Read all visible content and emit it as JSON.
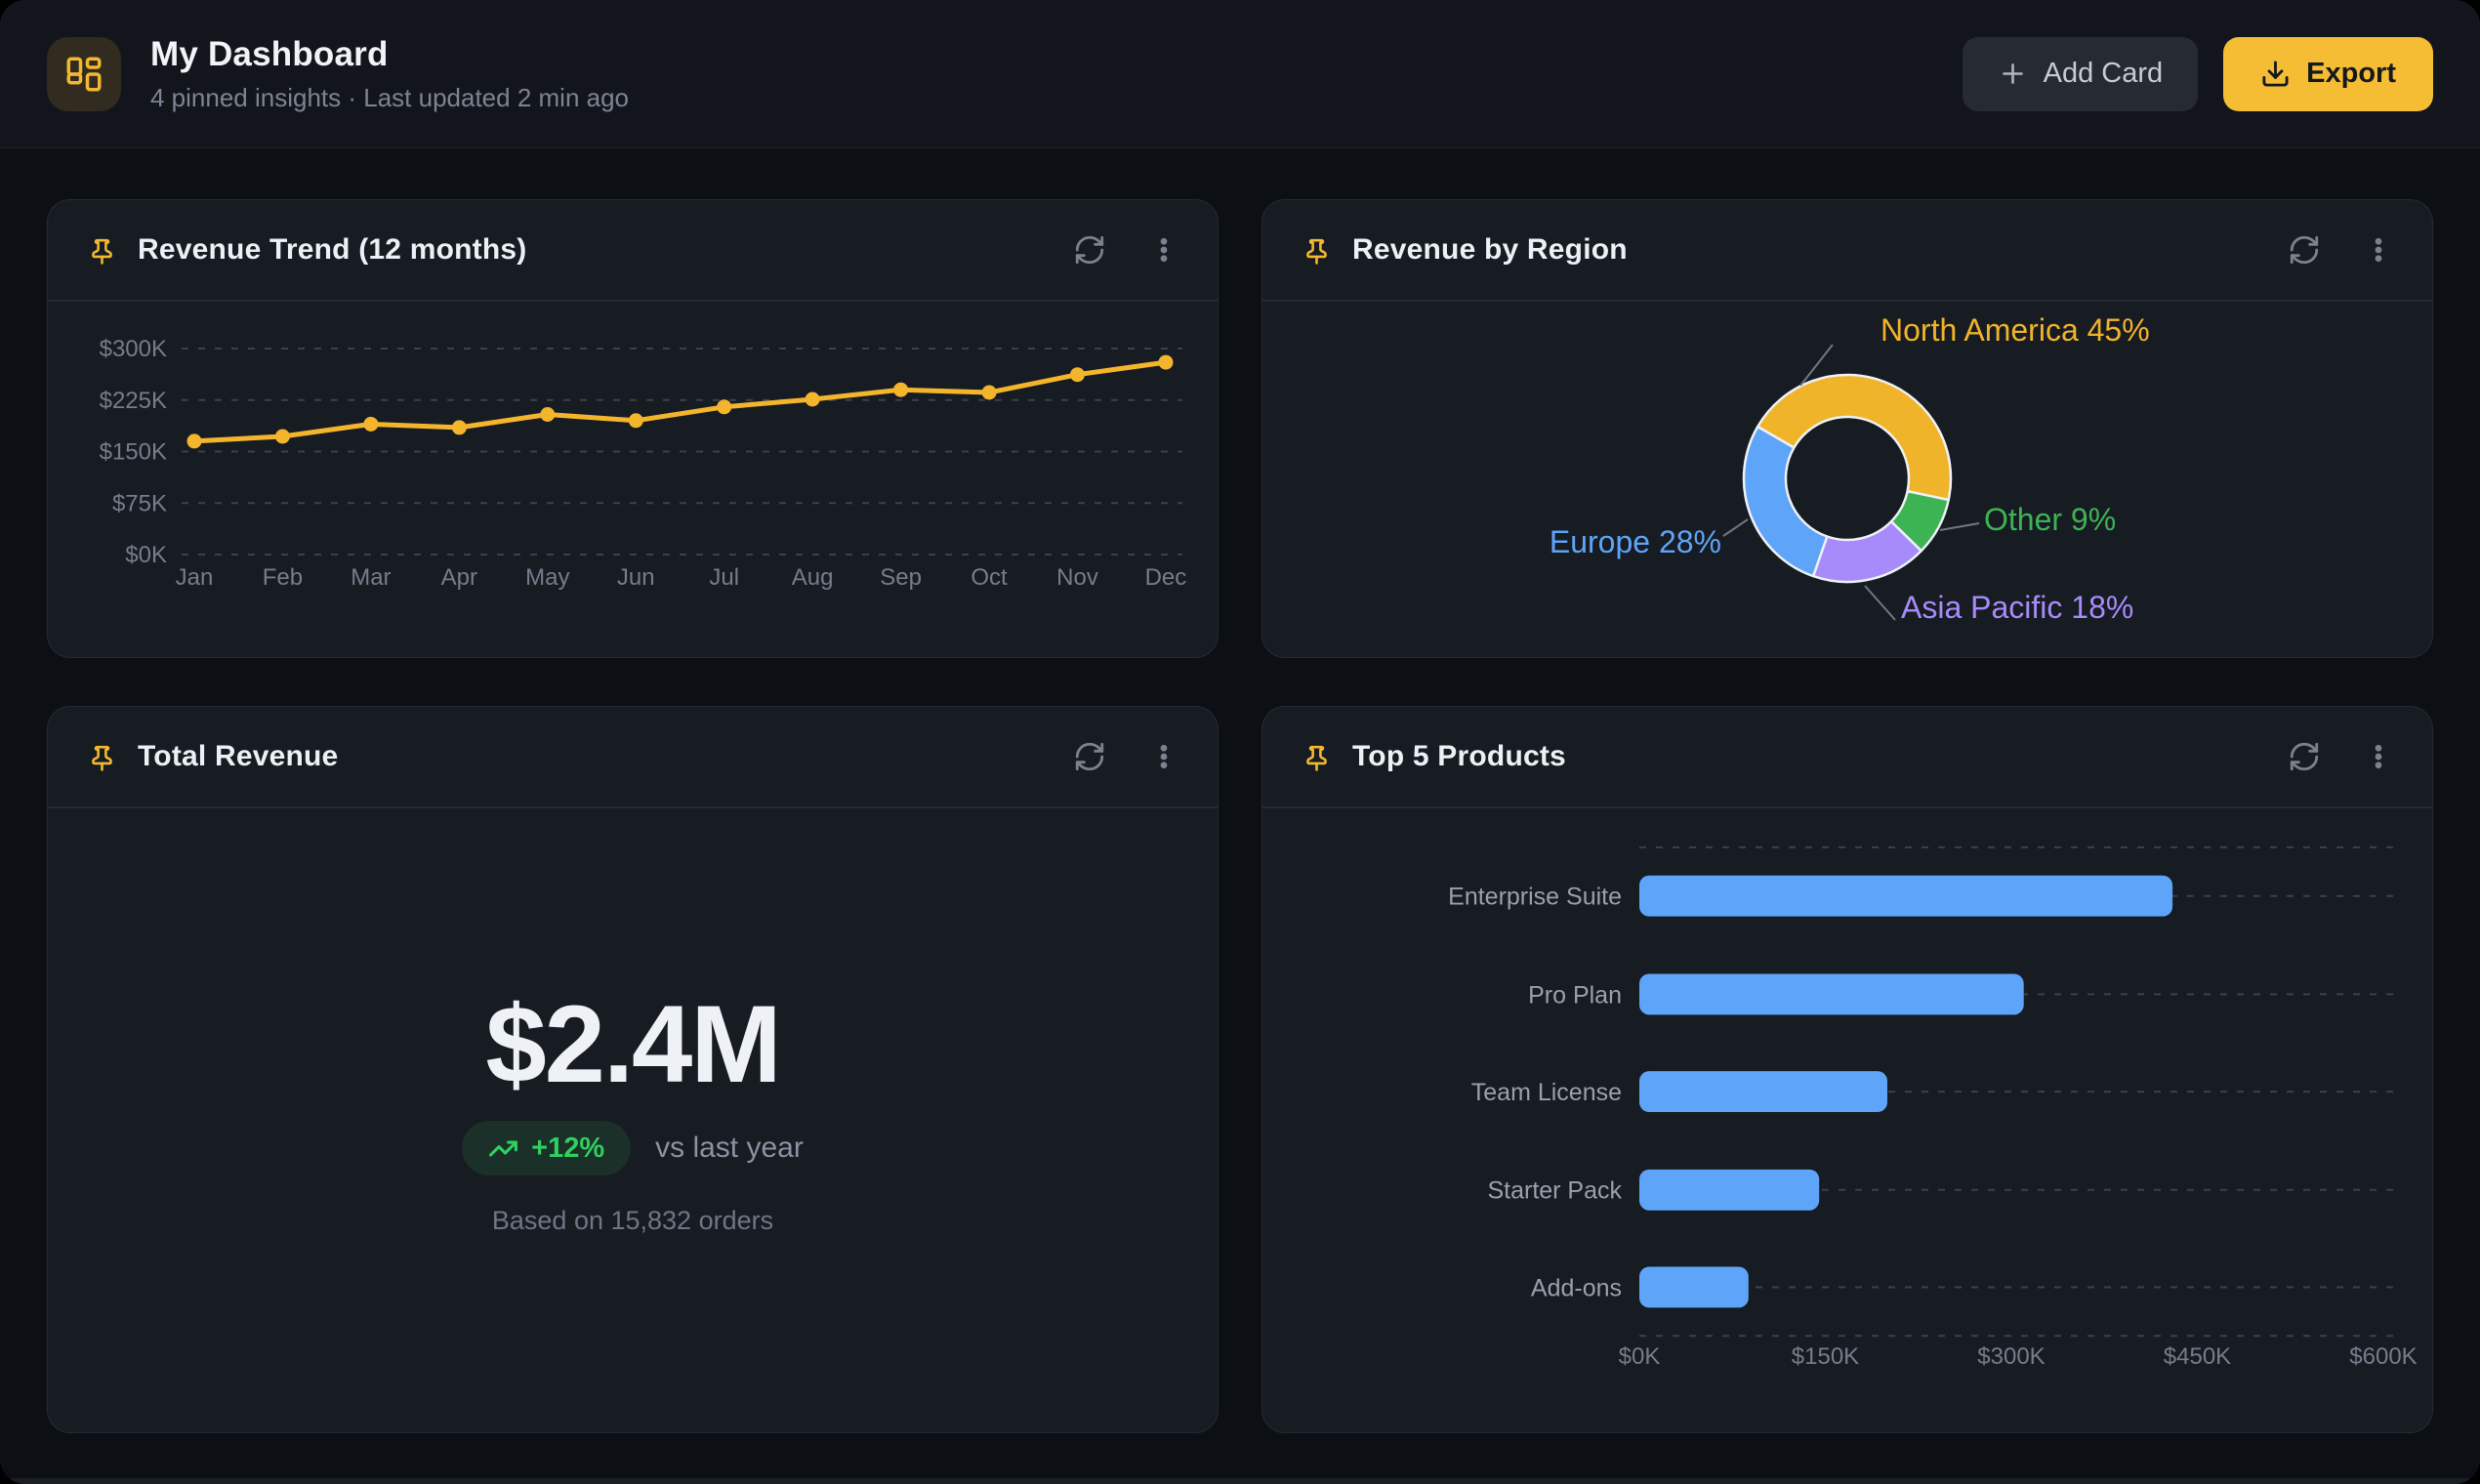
{
  "header": {
    "title": "My Dashboard",
    "subtitle": "4 pinned insights · Last updated 2 min ago",
    "add_card_label": "Add Card",
    "export_label": "Export"
  },
  "icons": {
    "logo": "layout-dashboard-icon",
    "card_marker": "pushpin-icon",
    "card_actions": [
      "refresh-icon",
      "kebab-menu-icon"
    ],
    "add_card": "plus-icon",
    "export": "download-icon",
    "kpi_badge": "trending-up-icon"
  },
  "ui_colors": {
    "page_bg": "#0c0f14",
    "topbar_bg": "#12161c",
    "card_bg": "#171b22",
    "card_border": "#252b34",
    "accent_yellow": "#f3b82f",
    "export_button_bg": "#f5bd33",
    "muted_text": "#7d8492",
    "title_text": "#f0f3f7",
    "badge_green": "#2fd05f"
  },
  "cards": {
    "total_revenue": {
      "title": "Total Revenue",
      "value": "$2.4M",
      "delta": "+12%",
      "delta_caption": "vs last year",
      "footnote": "Based on 15,832 orders"
    }
  },
  "chart_data": [
    {
      "id": "revenue_trend",
      "type": "line",
      "title": "Revenue Trend (12 months)",
      "x": [
        "Jan",
        "Feb",
        "Mar",
        "Apr",
        "May",
        "Jun",
        "Jul",
        "Aug",
        "Sep",
        "Oct",
        "Nov",
        "Dec"
      ],
      "values": [
        165000,
        172000,
        190000,
        185000,
        204000,
        195000,
        215000,
        226000,
        240000,
        236000,
        262000,
        280000
      ],
      "y_ticks": [
        "$0K",
        "$75K",
        "$150K",
        "$225K",
        "$300K"
      ],
      "ylim": [
        0,
        300000
      ],
      "line_color": "#f3b52c",
      "grid": "dashed horizontal"
    },
    {
      "id": "revenue_by_region",
      "type": "pie",
      "title": "Revenue by Region",
      "donut": true,
      "start_angle_deg_from_top": 300,
      "label_format": "{label} {pct}%",
      "segments": [
        {
          "label": "North America",
          "pct": 45,
          "color": "#f0b42b"
        },
        {
          "label": "Other",
          "pct": 9,
          "color": "#3cb454"
        },
        {
          "label": "Asia Pacific",
          "pct": 18,
          "color": "#a78bfa"
        },
        {
          "label": "Europe",
          "pct": 28,
          "color": "#5ea4f8"
        }
      ]
    },
    {
      "id": "top_products",
      "type": "bar",
      "orientation": "horizontal",
      "title": "Top 5 Products",
      "categories": [
        "Enterprise Suite",
        "Pro Plan",
        "Team License",
        "Starter Pack",
        "Add-ons"
      ],
      "values": [
        430000,
        310000,
        200000,
        145000,
        88000
      ],
      "x_ticks": [
        "$0K",
        "$150K",
        "$300K",
        "$450K",
        "$600K"
      ],
      "xlim": [
        0,
        600000
      ],
      "bar_color": "#5ea4f8",
      "grid": "dashed"
    }
  ]
}
